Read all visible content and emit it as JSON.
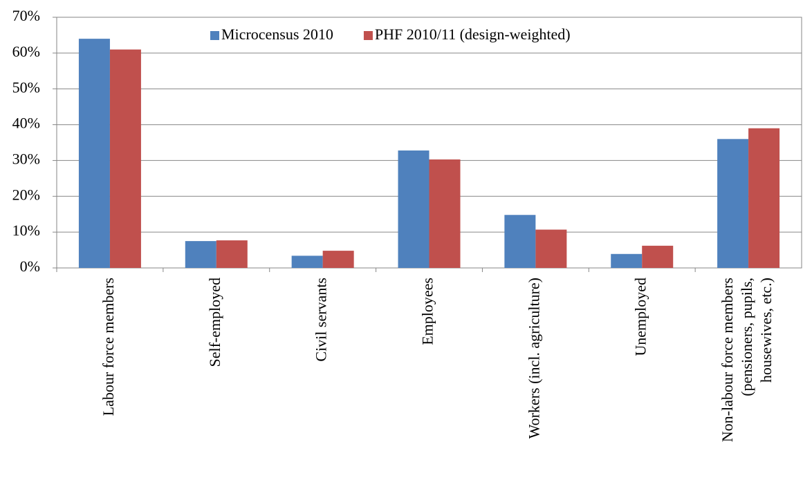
{
  "chart_data": {
    "type": "bar",
    "categories": [
      "Labour force members",
      "Self-employed",
      "Civil servants",
      "Employees",
      "Workers (incl. agriculture)",
      "Unemployed",
      "Non-labour force members\n(pensioners, pupils,\nhousewives, etc.)"
    ],
    "series": [
      {
        "name": "Microcensus 2010",
        "color": "#4f81bd",
        "values": [
          64,
          7.5,
          3.4,
          32.8,
          14.8,
          3.9,
          36
        ]
      },
      {
        "name": "PHF 2010/11 (design-weighted)",
        "color": "#c0504d",
        "values": [
          61,
          7.7,
          4.8,
          30.3,
          10.7,
          6.2,
          39
        ]
      }
    ],
    "ylim": [
      0,
      70
    ],
    "yticks": [
      {
        "value": 0,
        "label": "0%"
      },
      {
        "value": 10,
        "label": "10%"
      },
      {
        "value": 20,
        "label": "20%"
      },
      {
        "value": 30,
        "label": "30%"
      },
      {
        "value": 40,
        "label": "40%"
      },
      {
        "value": 50,
        "label": "50%"
      },
      {
        "value": 60,
        "label": "60%"
      },
      {
        "value": 70,
        "label": "70%"
      }
    ],
    "grid": true,
    "legend": "top"
  }
}
